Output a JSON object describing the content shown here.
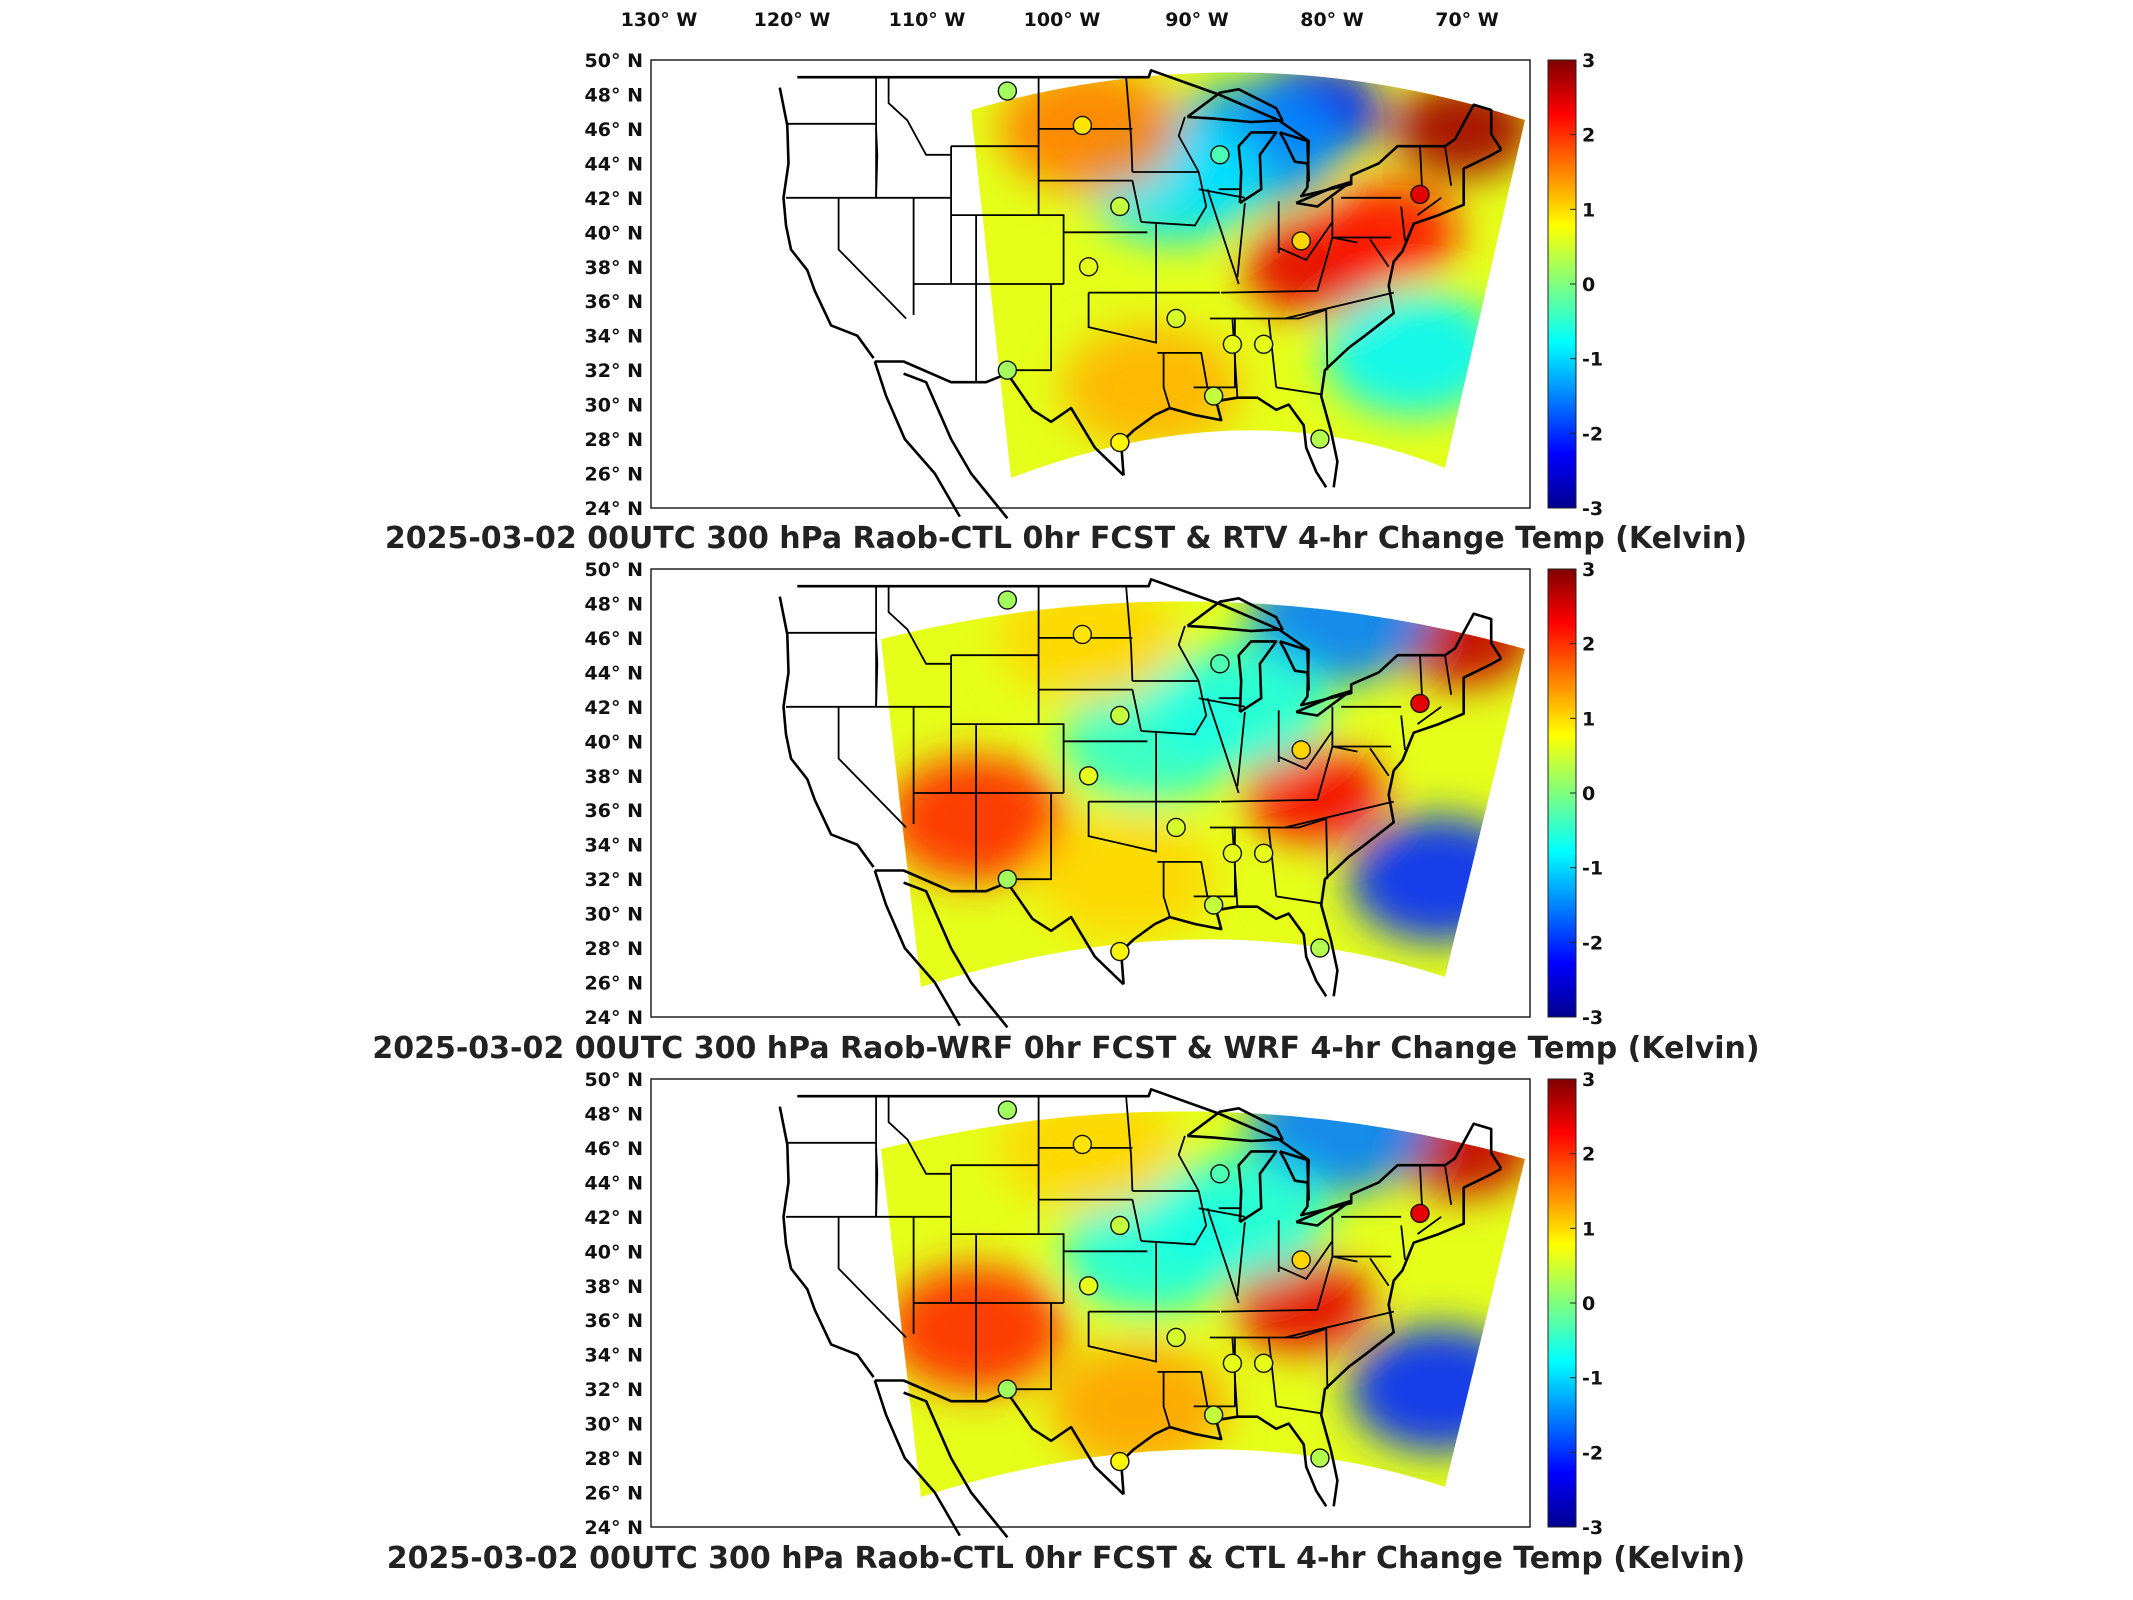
{
  "top_longitude_labels": [
    "130° W",
    "120° W",
    "110° W",
    "100° W",
    "90° W",
    "80° W",
    "70° W"
  ],
  "latitude_labels": [
    "50° N",
    "48° N",
    "46° N",
    "44° N",
    "42° N",
    "40° N",
    "38° N",
    "36° N",
    "34° N",
    "32° N",
    "30° N",
    "28° N",
    "26° N",
    "24° N"
  ],
  "colorbar": {
    "colormap": "jet",
    "ticks": [
      "3",
      "2",
      "1",
      "0",
      "-1",
      "-2",
      "-3"
    ],
    "min": -3,
    "max": 3
  },
  "panels": [
    {
      "title": "2025-03-02 00UTC 300 hPa Raob-CTL 0hr FCST & RTV 4-hr Change Temp (Kelvin)",
      "domain_shape": "narrow",
      "anomalies": [
        {
          "lon": -70,
          "lat": 46,
          "value": 2.8
        },
        {
          "lon": -82,
          "lat": 38,
          "value": 2.4
        },
        {
          "lon": -76,
          "lat": 40,
          "value": 2.2
        },
        {
          "lon": -82,
          "lat": 47,
          "value": -2.2
        },
        {
          "lon": -87,
          "lat": 45,
          "value": -1.4
        },
        {
          "lon": -93,
          "lat": 43,
          "value": -0.9
        },
        {
          "lon": -74,
          "lat": 33,
          "value": -0.8
        },
        {
          "lon": -100,
          "lat": 46,
          "value": 1.5
        },
        {
          "lon": -95,
          "lat": 31,
          "value": 1.2
        }
      ],
      "raob_markers": [
        {
          "lon": -106.5,
          "lat": 48.2,
          "value": 0.2
        },
        {
          "lon": -100.5,
          "lat": 46.2,
          "value": 0.9
        },
        {
          "lon": -97.5,
          "lat": 41.5,
          "value": 0.4
        },
        {
          "lon": -89.5,
          "lat": 44.5,
          "value": -0.3
        },
        {
          "lon": -73.5,
          "lat": 42.2,
          "value": 2.4
        },
        {
          "lon": -83,
          "lat": 39.5,
          "value": 1.0
        },
        {
          "lon": -100,
          "lat": 38,
          "value": 0.6
        },
        {
          "lon": -93,
          "lat": 35,
          "value": 0.5
        },
        {
          "lon": -88.5,
          "lat": 33.5,
          "value": 0.6
        },
        {
          "lon": -86,
          "lat": 33.5,
          "value": 0.6
        },
        {
          "lon": -106.5,
          "lat": 32,
          "value": 0.2
        },
        {
          "lon": -97.5,
          "lat": 27.8,
          "value": 0.8
        },
        {
          "lon": -90,
          "lat": 30.5,
          "value": 0.4
        },
        {
          "lon": -81.5,
          "lat": 28,
          "value": 0.3
        }
      ]
    },
    {
      "title": "2025-03-02 00UTC 300 hPa Raob-WRF 0hr FCST & WRF 4-hr Change Temp (Kelvin)",
      "domain_shape": "wide",
      "anomalies": [
        {
          "lon": -70,
          "lat": 46,
          "value": 2.6
        },
        {
          "lon": -82,
          "lat": 37,
          "value": 2.3
        },
        {
          "lon": -109,
          "lat": 35.5,
          "value": 2.0
        },
        {
          "lon": -97,
          "lat": 32,
          "value": 1.0
        },
        {
          "lon": -80,
          "lat": 47,
          "value": -1.5
        },
        {
          "lon": -72,
          "lat": 32,
          "value": -2.0
        },
        {
          "lon": -95,
          "lat": 40,
          "value": -0.5
        },
        {
          "lon": -88,
          "lat": 42,
          "value": -0.6
        },
        {
          "lon": -100,
          "lat": 46,
          "value": 1.0
        }
      ],
      "raob_markers": [
        {
          "lon": -106.5,
          "lat": 48.2,
          "value": 0.2
        },
        {
          "lon": -100.5,
          "lat": 46.2,
          "value": 0.9
        },
        {
          "lon": -97.5,
          "lat": 41.5,
          "value": 0.4
        },
        {
          "lon": -89.5,
          "lat": 44.5,
          "value": -0.3
        },
        {
          "lon": -73.5,
          "lat": 42.2,
          "value": 2.4
        },
        {
          "lon": -83,
          "lat": 39.5,
          "value": 1.0
        },
        {
          "lon": -100,
          "lat": 38,
          "value": 0.6
        },
        {
          "lon": -93,
          "lat": 35,
          "value": 0.5
        },
        {
          "lon": -88.5,
          "lat": 33.5,
          "value": 0.6
        },
        {
          "lon": -86,
          "lat": 33.5,
          "value": 0.6
        },
        {
          "lon": -106.5,
          "lat": 32,
          "value": 0.2
        },
        {
          "lon": -97.5,
          "lat": 27.8,
          "value": 0.8
        },
        {
          "lon": -90,
          "lat": 30.5,
          "value": 0.4
        },
        {
          "lon": -81.5,
          "lat": 28,
          "value": 0.3
        }
      ]
    },
    {
      "title": "2025-03-02 00UTC 300 hPa Raob-CTL 0hr FCST & CTL 4-hr Change Temp (Kelvin)",
      "domain_shape": "wide",
      "anomalies": [
        {
          "lon": -70,
          "lat": 46,
          "value": 2.6
        },
        {
          "lon": -83,
          "lat": 37,
          "value": 2.4
        },
        {
          "lon": -109,
          "lat": 35.5,
          "value": 2.0
        },
        {
          "lon": -96,
          "lat": 31,
          "value": 1.3
        },
        {
          "lon": -80,
          "lat": 47,
          "value": -1.5
        },
        {
          "lon": -72,
          "lat": 32,
          "value": -2.0
        },
        {
          "lon": -95,
          "lat": 40,
          "value": -0.6
        },
        {
          "lon": -88,
          "lat": 42,
          "value": -0.6
        },
        {
          "lon": -100,
          "lat": 46,
          "value": 1.0
        }
      ],
      "raob_markers": [
        {
          "lon": -106.5,
          "lat": 48.2,
          "value": 0.2
        },
        {
          "lon": -100.5,
          "lat": 46.2,
          "value": 0.9
        },
        {
          "lon": -97.5,
          "lat": 41.5,
          "value": 0.4
        },
        {
          "lon": -89.5,
          "lat": 44.5,
          "value": -0.3
        },
        {
          "lon": -73.5,
          "lat": 42.2,
          "value": 2.4
        },
        {
          "lon": -83,
          "lat": 39.5,
          "value": 1.0
        },
        {
          "lon": -100,
          "lat": 38,
          "value": 0.6
        },
        {
          "lon": -93,
          "lat": 35,
          "value": 0.5
        },
        {
          "lon": -88.5,
          "lat": 33.5,
          "value": 0.6
        },
        {
          "lon": -86,
          "lat": 33.5,
          "value": 0.6
        },
        {
          "lon": -106.5,
          "lat": 32,
          "value": 0.2
        },
        {
          "lon": -97.5,
          "lat": 27.8,
          "value": 0.8
        },
        {
          "lon": -90,
          "lat": 30.5,
          "value": 0.4
        },
        {
          "lon": -81.5,
          "lat": 28,
          "value": 0.3
        }
      ]
    }
  ]
}
